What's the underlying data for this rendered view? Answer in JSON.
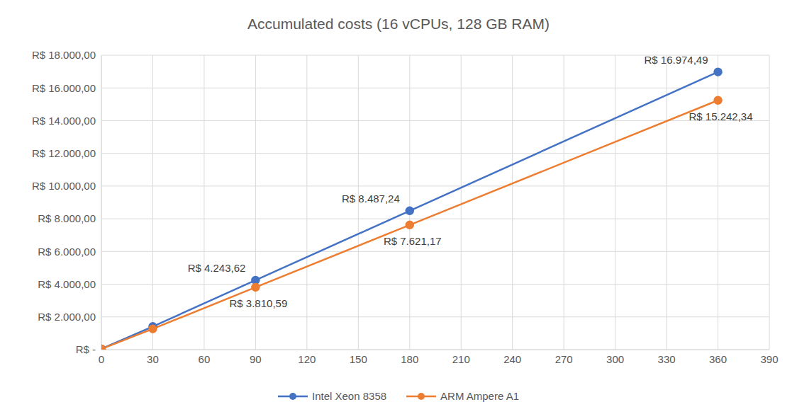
{
  "chart_data": {
    "type": "line",
    "title": "Accumulated costs (16 vCPUs, 128 GB RAM)",
    "x": [
      0,
      30,
      90,
      180,
      360
    ],
    "series": [
      {
        "name": "Intel Xeon 8358",
        "color": "#4472c4",
        "marker": "circle",
        "values": [
          47.15,
          1414.54,
          4243.62,
          8487.24,
          16974.49
        ],
        "value_labels": [
          null,
          null,
          "R$ 4.243,62",
          "R$ 8.487,24",
          "R$ 16.974,49"
        ]
      },
      {
        "name": "ARM Ampere A1",
        "color": "#ed7d31",
        "marker": "circle",
        "values": [
          42.34,
          1270.2,
          3810.59,
          7621.17,
          15242.34
        ],
        "value_labels": [
          null,
          null,
          "R$ 3.810,59",
          "R$ 7.621,17",
          "R$ 15.242,34"
        ]
      }
    ],
    "xlim": [
      0,
      390
    ],
    "xticks": [
      0,
      30,
      60,
      90,
      120,
      150,
      180,
      210,
      240,
      270,
      300,
      330,
      360,
      390
    ],
    "ylim": [
      0,
      18000
    ],
    "yticks": [
      {
        "value": 0,
        "label": "R$ -"
      },
      {
        "value": 2000,
        "label": "R$ 2.000,00"
      },
      {
        "value": 4000,
        "label": "R$ 4.000,00"
      },
      {
        "value": 6000,
        "label": "R$ 6.000,00"
      },
      {
        "value": 8000,
        "label": "R$ 8.000,00"
      },
      {
        "value": 10000,
        "label": "R$ 10.000,00"
      },
      {
        "value": 12000,
        "label": "R$ 12.000,00"
      },
      {
        "value": 14000,
        "label": "R$ 14.000,00"
      },
      {
        "value": 16000,
        "label": "R$ 16.000,00"
      },
      {
        "value": 18000,
        "label": "R$ 18.000,00"
      }
    ],
    "grid": true,
    "legend": "bottom",
    "data_labels": true
  }
}
